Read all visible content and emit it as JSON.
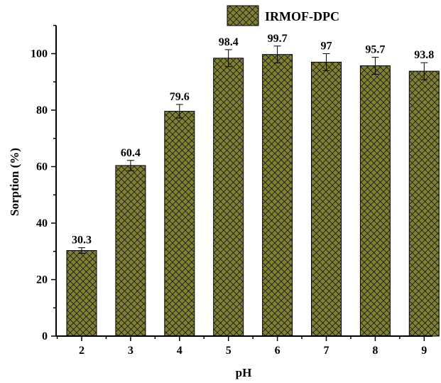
{
  "chart_data": {
    "type": "bar",
    "categories": [
      "2",
      "3",
      "4",
      "5",
      "6",
      "7",
      "8",
      "9"
    ],
    "series": [
      {
        "name": "IRMOF-DPC",
        "values": [
          30.3,
          60.4,
          79.6,
          98.4,
          99.7,
          97,
          95.7,
          93.8
        ],
        "errors": [
          1.0,
          1.8,
          2.4,
          3.0,
          3.0,
          3.0,
          3.0,
          3.0
        ],
        "data_labels": [
          "30.3",
          "60.4",
          "79.6",
          "98.4",
          "99.7",
          "97",
          "95.7",
          "93.8"
        ]
      }
    ],
    "xlabel": "pH",
    "ylabel": "Sorption (%)",
    "ylim": [
      0,
      110
    ],
    "yticks": [
      0,
      20,
      40,
      60,
      80,
      100
    ],
    "grid": false,
    "legend_position": "top-center",
    "colors": {
      "bar_fill": "#808030",
      "hatch": "#1a1a1a",
      "axis": "#000000"
    }
  }
}
